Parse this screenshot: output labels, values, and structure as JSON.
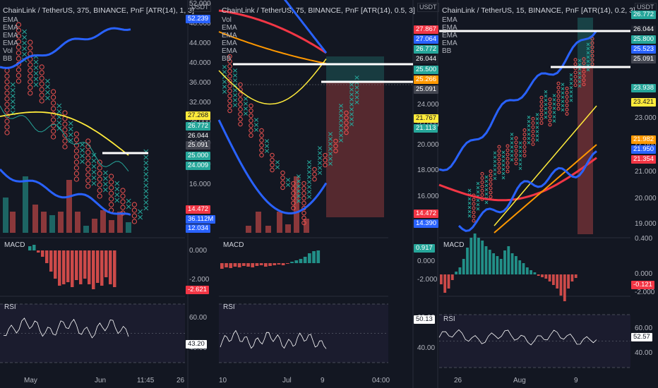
{
  "colors": {
    "bg": "#131722",
    "grid": "#1e222d",
    "up": "#26a69a",
    "down": "#ef5350",
    "blue": "#2962ff",
    "yellow": "#ffeb3b",
    "orange": "#ff9800",
    "red": "#f23645",
    "white": "#ffffff"
  },
  "panels": [
    {
      "header": "ChainLink / TetherUS, 375, BINANCE, PnF [ATR(14), 1, 3]",
      "legend": [
        "EMA",
        "EMA",
        "EMA",
        "EMA",
        "Vol",
        "BB"
      ],
      "unit": "USDT",
      "price_ticks": [
        "52.000",
        "48.000",
        "44.000",
        "40.000",
        "36.000",
        "32.000",
        "28.000",
        "24.000",
        "20.000",
        "16.000"
      ],
      "price_tags": [
        {
          "text": "52.239",
          "color": "#2962ff"
        },
        {
          "text": "27.268",
          "color": "#ffeb3b"
        },
        {
          "text": "26.772",
          "color": "#26a69a"
        },
        {
          "text": "26.044",
          "color": "#1e222d"
        },
        {
          "text": "25.091",
          "color": "#434651"
        },
        {
          "text": "25.000",
          "color": "#26a69a"
        },
        {
          "text": "24.009",
          "color": "#26a69a"
        },
        {
          "text": "14.472",
          "color": "#f23645"
        },
        {
          "text": "36.112M",
          "color": "#2962ff"
        },
        {
          "text": "12.034",
          "color": "#2962ff"
        }
      ],
      "macd_label": "MACD",
      "macd_ticks": [
        "0.000",
        "-2.000"
      ],
      "macd_tag": {
        "text": "-2.621",
        "color": "#f23645"
      },
      "rsi_label": "RSI",
      "rsi_ticks": [
        "60.00",
        "40.00"
      ],
      "rsi_tag": {
        "text": "43.20",
        "color": "#ffffff"
      },
      "time_ticks": [
        "May",
        "Jun",
        "11:45",
        "26"
      ]
    },
    {
      "header": "ChainLink / TetherUS, 75, BINANCE, PnF [ATR(14), 0.5, 3]",
      "legend": [
        "Vol",
        "EMA",
        "EMA",
        "EMA",
        "EMA",
        "BB"
      ],
      "unit": "USDT",
      "price_ticks": [
        "24.000",
        "22.000",
        "20.000",
        "18.000",
        "16.000"
      ],
      "price_tags": [
        {
          "text": "27.867",
          "color": "#f23645"
        },
        {
          "text": "27.064",
          "color": "#2962ff"
        },
        {
          "text": "26.772",
          "color": "#26a69a"
        },
        {
          "text": "26.044",
          "color": "#1e222d"
        },
        {
          "text": "25.500",
          "color": "#26a69a"
        },
        {
          "text": "25.266",
          "color": "#ff9800"
        },
        {
          "text": "25.091",
          "color": "#434651"
        },
        {
          "text": "21.767",
          "color": "#ffeb3b"
        },
        {
          "text": "21.113",
          "color": "#26a69a"
        },
        {
          "text": "14.472",
          "color": "#f23645"
        },
        {
          "text": "14.390",
          "color": "#2962ff"
        }
      ],
      "macd_label": "MACD",
      "macd_ticks": [
        "0.000",
        "-2.000"
      ],
      "macd_tag": {
        "text": "0.917",
        "color": "#26a69a"
      },
      "rsi_label": "RSI",
      "rsi_ticks": [
        "60.00",
        "40.00"
      ],
      "rsi_tag": {
        "text": "50.13",
        "color": "#ffffff"
      },
      "time_ticks": [
        "10",
        "Jul",
        "9",
        "04:00"
      ]
    },
    {
      "header": "ChainLink / TetherUS, 15, BINANCE, PnF [ATR(14), 0.2, 3]",
      "legend": [
        "EMA",
        "EMA",
        "EMA",
        "EMA",
        "BB"
      ],
      "unit": "USDT",
      "price_ticks": [
        "23.000",
        "22.000",
        "21.000",
        "20.000",
        "19.000"
      ],
      "price_tags": [
        {
          "text": "26.772",
          "color": "#26a69a"
        },
        {
          "text": "26.044",
          "color": "#1e222d"
        },
        {
          "text": "25.800",
          "color": "#26a69a"
        },
        {
          "text": "25.523",
          "color": "#2962ff"
        },
        {
          "text": "25.091",
          "color": "#434651"
        },
        {
          "text": "23.938",
          "color": "#26a69a"
        },
        {
          "text": "23.421",
          "color": "#ffeb3b"
        },
        {
          "text": "21.982",
          "color": "#ff9800"
        },
        {
          "text": "21.950",
          "color": "#2962ff"
        },
        {
          "text": "21.354",
          "color": "#f23645"
        }
      ],
      "macd_label": "MACD",
      "macd_ticks": [
        "0.400",
        "0.000",
        "-2.000"
      ],
      "macd_tag": {
        "text": "-0.121",
        "color": "#f23645"
      },
      "rsi_label": "RSI",
      "rsi_ticks": [
        "60.00",
        "40.00"
      ],
      "rsi_tag": {
        "text": "52.57",
        "color": "#ffffff"
      },
      "time_ticks": [
        "26",
        "Aug",
        "9"
      ]
    }
  ]
}
